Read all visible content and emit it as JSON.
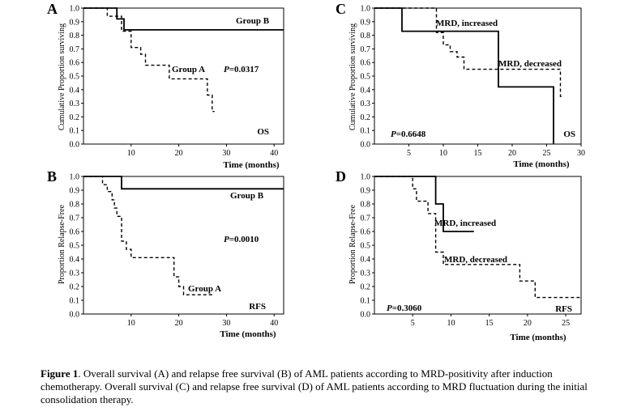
{
  "caption": {
    "figure_label": "Figure 1",
    "text": ". Overall survival (A) and relapse free survival (B) of AML patients according to MRD-positivity after induction chemotherapy. Overall survival (C) and relapse free survival (D) of AML patients according to MRD fluctuation during the initial consolidation therapy."
  },
  "chart_data": [
    {
      "type": "line",
      "panel": "A",
      "xlabel": "Time (months)",
      "ylabel": "Cumulative Proportion surviving",
      "xlim": [
        0,
        42
      ],
      "ylim": [
        0,
        1
      ],
      "xticks": [
        "10",
        "20",
        "30",
        "40"
      ],
      "yticks": [
        "0.0",
        "0.1",
        "0.2",
        "0.3",
        "0.4",
        "0.5",
        "0.6",
        "0.7",
        "0.8",
        "0.9",
        "1.0"
      ],
      "corner_label": "OS",
      "pvalue": "=0.0317",
      "pvalue_prefix": "P",
      "series": [
        {
          "name": "Group B",
          "style": "solid",
          "x": [
            0,
            5,
            7,
            8.5,
            42
          ],
          "y": [
            1.0,
            1.0,
            0.92,
            0.84,
            0.84
          ]
        },
        {
          "name": "Group A",
          "style": "dashed",
          "x": [
            0,
            5,
            8,
            10,
            12,
            13,
            18,
            24,
            26,
            27,
            27.5
          ],
          "y": [
            1.0,
            0.94,
            0.83,
            0.71,
            0.66,
            0.58,
            0.48,
            0.48,
            0.36,
            0.24,
            0.24
          ]
        }
      ]
    },
    {
      "type": "line",
      "panel": "B",
      "xlabel": "Time (months)",
      "ylabel": "Proportion Relapse-Free",
      "xlim": [
        0,
        42
      ],
      "ylim": [
        0,
        1
      ],
      "xticks": [
        "10",
        "20",
        "30",
        "40"
      ],
      "yticks": [
        "0.0",
        "0.1",
        "0.2",
        "0.3",
        "0.4",
        "0.5",
        "0.6",
        "0.7",
        "0.8",
        "0.9",
        "1.0"
      ],
      "corner_label": "RFS",
      "pvalue": "=0.0010",
      "pvalue_prefix": "P",
      "series": [
        {
          "name": "Group B",
          "style": "solid",
          "x": [
            0,
            7,
            8,
            42
          ],
          "y": [
            1.0,
            1.0,
            0.91,
            0.91
          ]
        },
        {
          "name": "Group A",
          "style": "dashed",
          "x": [
            0,
            4,
            5,
            6,
            6.5,
            7,
            8,
            9,
            10,
            19,
            20,
            21,
            27
          ],
          "y": [
            1.0,
            0.94,
            0.89,
            0.83,
            0.77,
            0.71,
            0.53,
            0.47,
            0.41,
            0.27,
            0.2,
            0.14,
            0.14
          ]
        }
      ]
    },
    {
      "type": "line",
      "panel": "C",
      "xlabel": "Time (months)",
      "ylabel": "Cumulative Proportion surviving",
      "xlim": [
        0,
        30
      ],
      "ylim": [
        0,
        1
      ],
      "xticks": [
        "5",
        "10",
        "15",
        "20",
        "25",
        "30"
      ],
      "yticks": [
        "0.0",
        "0.1",
        "0.2",
        "0.3",
        "0.4",
        "0.5",
        "0.6",
        "0.7",
        "0.8",
        "0.9",
        "1.0"
      ],
      "corner_label": "OS",
      "pvalue": "=0.6648",
      "pvalue_prefix": "P",
      "series": [
        {
          "name": "MRD, increased",
          "style": "solid",
          "x": [
            0,
            4,
            18,
            26,
            26
          ],
          "y": [
            1.0,
            0.83,
            0.42,
            0.42,
            0.0
          ]
        },
        {
          "name": "MRD, decreased",
          "style": "dashed",
          "x": [
            0,
            9,
            10,
            11,
            12,
            13,
            27,
            27.5
          ],
          "y": [
            1.0,
            0.82,
            0.73,
            0.68,
            0.64,
            0.55,
            0.35,
            0.35
          ]
        }
      ]
    },
    {
      "type": "line",
      "panel": "D",
      "xlabel": "Time (months)",
      "ylabel": "Proportion Relapse-Free",
      "xlim": [
        0,
        27
      ],
      "ylim": [
        0,
        1
      ],
      "xticks": [
        "5",
        "10",
        "15",
        "20",
        "25"
      ],
      "yticks": [
        "0.0",
        "0.1",
        "0.2",
        "0.3",
        "0.4",
        "0.5",
        "0.6",
        "0.7",
        "0.8",
        "0.9",
        "1.0"
      ],
      "corner_label": "RFS",
      "pvalue": "=0.3060",
      "pvalue_prefix": "P",
      "series": [
        {
          "name": "MRD, increased",
          "style": "solid",
          "x": [
            0,
            7,
            8,
            9,
            13
          ],
          "y": [
            1.0,
            1.0,
            0.8,
            0.6,
            0.6
          ]
        },
        {
          "name": "MRD, decreased",
          "style": "dashed",
          "x": [
            0,
            5,
            5.5,
            7,
            8,
            9,
            16,
            19,
            21,
            27
          ],
          "y": [
            1.0,
            0.91,
            0.82,
            0.73,
            0.45,
            0.36,
            0.36,
            0.24,
            0.12,
            0.12
          ]
        }
      ]
    }
  ]
}
